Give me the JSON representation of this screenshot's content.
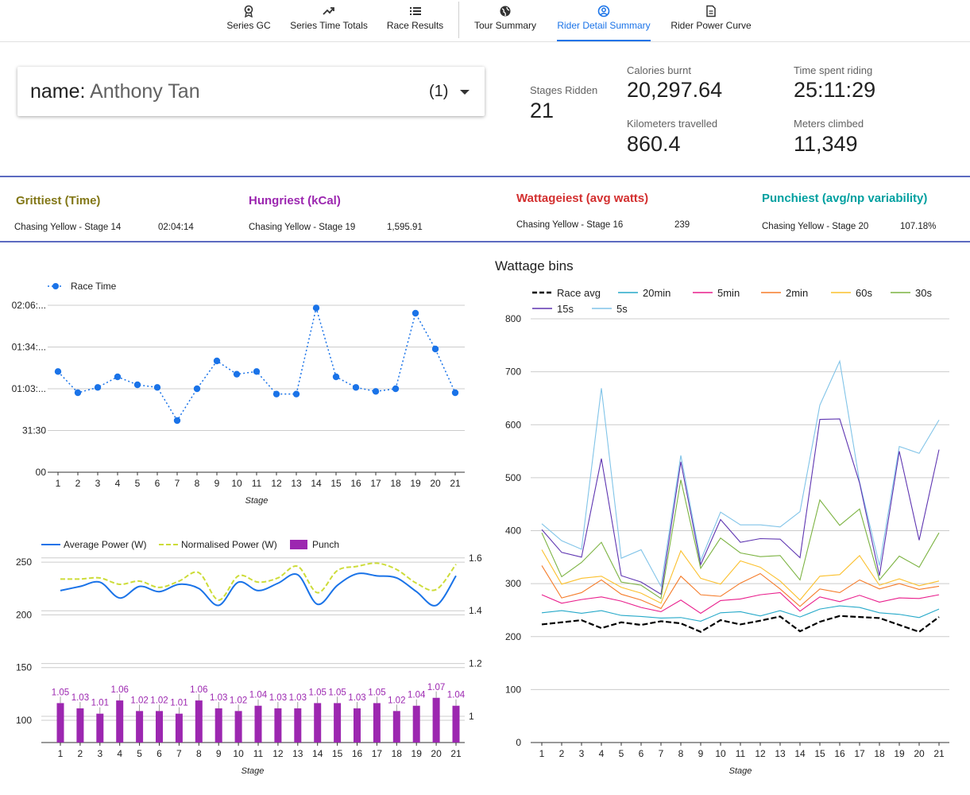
{
  "nav": {
    "items": [
      {
        "label": "Series GC",
        "icon": "medal-icon"
      },
      {
        "label": "Series Time Totals",
        "icon": "trending-up-icon"
      },
      {
        "label": "Race Results",
        "icon": "list-icon"
      },
      {
        "label": "Tour Summary",
        "icon": "globe-icon"
      },
      {
        "label": "Rider Detail Summary",
        "icon": "user-circle-icon",
        "active": true
      },
      {
        "label": "Rider Power Curve",
        "icon": "document-icon"
      }
    ]
  },
  "selector": {
    "key": "name",
    "value": "Anthony Tan",
    "count": "(1)"
  },
  "stats": {
    "stages_label": "Stages Ridden",
    "stages_value": "21",
    "calories_label": "Calories burnt",
    "calories_value": "20,297.64",
    "time_label": "Time spent riding",
    "time_value": "25:11:29",
    "km_label": "Kilometers travelled",
    "km_value": "860.4",
    "meters_label": "Meters climbed",
    "meters_value": "11,349"
  },
  "highlights": [
    {
      "title": "Grittiest (Time)",
      "stage": "Chasing Yellow - Stage 14",
      "value": "02:04:14",
      "color": "#827717"
    },
    {
      "title": "Hungriest (kCal)",
      "stage": "Chasing Yellow - Stage 19",
      "value": "1,595.91",
      "color": "#9c27b0"
    },
    {
      "title": "Wattageiest (avg watts)",
      "stage": "Chasing Yellow - Stage 16",
      "value": "239",
      "color": "#d32f2f"
    },
    {
      "title": "Punchiest (avg/np variability)",
      "stage": "Chasing Yellow - Stage 20",
      "value": "107.18%",
      "color": "#00a0a0"
    }
  ],
  "chart_data": [
    {
      "type": "line",
      "title": "",
      "legend": [
        "Race Time"
      ],
      "xlabel": "Stage",
      "x": [
        1,
        2,
        3,
        4,
        5,
        6,
        7,
        8,
        9,
        10,
        11,
        12,
        13,
        14,
        15,
        16,
        17,
        18,
        19,
        20,
        21
      ],
      "yticks": [
        "00",
        "31:30",
        "01:03:...",
        "01:34:...",
        "02:06:..."
      ],
      "ylim_minutes": [
        0,
        126
      ],
      "series": [
        {
          "name": "Race Time",
          "values_minutes": [
            76,
            60,
            64,
            72,
            66,
            64,
            39,
            63,
            84,
            74,
            76,
            59,
            59,
            124,
            72,
            64,
            61,
            63,
            120,
            93,
            60
          ]
        }
      ],
      "color": "#1a73e8"
    },
    {
      "type": "line",
      "title": "",
      "legend": [
        "Average Power (W)",
        "Normalised Power (W)",
        "Punch"
      ],
      "xlabel": "Stage",
      "x": [
        1,
        2,
        3,
        4,
        5,
        6,
        7,
        8,
        9,
        10,
        11,
        12,
        13,
        14,
        15,
        16,
        17,
        18,
        19,
        20,
        21
      ],
      "y_left_ticks": [
        "100",
        "150",
        "200",
        "250"
      ],
      "y_right_ticks": [
        "1",
        "1.2",
        "1.4",
        "1.6"
      ],
      "series": [
        {
          "name": "Average Power (W)",
          "values": [
            223,
            227,
            231,
            216,
            227,
            222,
            229,
            225,
            209,
            231,
            223,
            230,
            238,
            210,
            228,
            239,
            237,
            235,
            222,
            209,
            237
          ],
          "color": "#1a73e8"
        },
        {
          "name": "Normalised Power (W)",
          "values": [
            234,
            234,
            235,
            229,
            232,
            226,
            232,
            240,
            214,
            237,
            231,
            235,
            246,
            221,
            242,
            246,
            249,
            243,
            230,
            224,
            248
          ],
          "color": "#cddc39"
        },
        {
          "name": "Punch",
          "values": [
            1.05,
            1.03,
            1.01,
            1.06,
            1.02,
            1.02,
            1.01,
            1.06,
            1.03,
            1.02,
            1.04,
            1.03,
            1.03,
            1.05,
            1.05,
            1.03,
            1.05,
            1.02,
            1.04,
            1.07,
            1.04
          ],
          "color": "#9c27b0"
        }
      ]
    },
    {
      "type": "line",
      "title": "Wattage bins",
      "xlabel": "Stage",
      "x": [
        1,
        2,
        3,
        4,
        5,
        6,
        7,
        8,
        9,
        10,
        11,
        12,
        13,
        14,
        15,
        16,
        17,
        18,
        19,
        20,
        21
      ],
      "ylim": [
        0,
        800
      ],
      "yticks": [
        0,
        100,
        200,
        300,
        400,
        500,
        600,
        700,
        800
      ],
      "series": [
        {
          "name": "Race avg",
          "color": "#000000",
          "dashed": true,
          "values": [
            223,
            227,
            231,
            216,
            227,
            222,
            229,
            225,
            209,
            231,
            223,
            230,
            238,
            210,
            228,
            239,
            237,
            235,
            222,
            209,
            237
          ]
        },
        {
          "name": "20min",
          "color": "#26a9c9",
          "values": [
            245,
            249,
            244,
            249,
            240,
            238,
            235,
            236,
            229,
            245,
            247,
            239,
            249,
            237,
            252,
            258,
            255,
            245,
            242,
            236,
            252
          ]
        },
        {
          "name": "5min",
          "color": "#e91e8c",
          "values": [
            279,
            263,
            270,
            275,
            267,
            255,
            247,
            269,
            244,
            268,
            271,
            279,
            283,
            248,
            275,
            266,
            278,
            265,
            273,
            272,
            279
          ]
        },
        {
          "name": "2min",
          "color": "#f57c2a",
          "values": [
            334,
            273,
            283,
            307,
            280,
            269,
            253,
            314,
            279,
            276,
            301,
            319,
            290,
            257,
            290,
            283,
            307,
            290,
            300,
            289,
            295
          ]
        },
        {
          "name": "60s",
          "color": "#fbc02d",
          "values": [
            364,
            299,
            310,
            314,
            293,
            282,
            263,
            362,
            310,
            299,
            343,
            331,
            305,
            269,
            314,
            317,
            353,
            297,
            309,
            296,
            305
          ]
        },
        {
          "name": "30s",
          "color": "#7cb342",
          "values": [
            396,
            313,
            340,
            378,
            303,
            297,
            272,
            496,
            329,
            386,
            358,
            351,
            353,
            307,
            458,
            410,
            441,
            307,
            352,
            331,
            396
          ]
        },
        {
          "name": "15s",
          "color": "#5e35b1",
          "values": [
            402,
            359,
            350,
            536,
            315,
            303,
            280,
            530,
            336,
            421,
            378,
            385,
            384,
            349,
            610,
            611,
            490,
            315,
            550,
            382,
            553
          ]
        },
        {
          "name": "5s",
          "color": "#81c4e8",
          "values": [
            413,
            381,
            365,
            669,
            348,
            364,
            295,
            542,
            344,
            435,
            411,
            411,
            407,
            436,
            637,
            720,
            492,
            334,
            559,
            546,
            609
          ]
        }
      ]
    }
  ]
}
